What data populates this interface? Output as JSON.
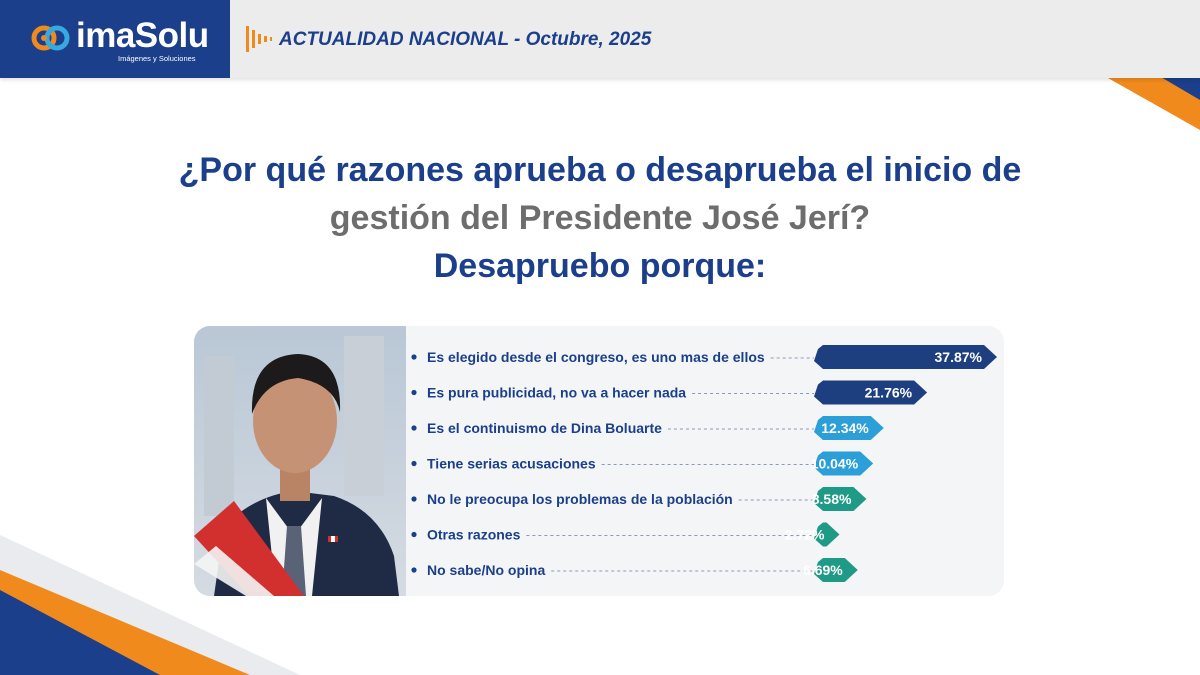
{
  "brand": {
    "name": "imaSolu",
    "tagline": "Imágenes y Soluciones",
    "colors": {
      "navy": "#1b3f8b",
      "orange": "#f08a1c",
      "grey_text": "#6d6d6d"
    }
  },
  "header": {
    "title": "ACTUALIDAD NACIONAL - Octubre, 2025",
    "icon": "equalizer-icon"
  },
  "question": {
    "line1": "¿Por qué razones aprueba o desaprueba el inicio de",
    "line2": "gestión del Presidente José Jerí?",
    "line3": "Desapruebo porque:"
  },
  "photo": {
    "subject": "portrait-photo"
  },
  "chart_data": {
    "type": "bar",
    "orientation": "horizontal",
    "categories": [
      "Es elegido desde el congreso, es uno mas de ellos",
      "Es pura publicidad, no va a hacer nada",
      "Es el continuismo de Dina Boluarte",
      "Tiene serias acusaciones",
      "No le preocupa los problemas de la población",
      "Otras razones",
      "No sabe/No opina"
    ],
    "values": [
      37.87,
      21.76,
      12.34,
      10.04,
      8.58,
      2.72,
      6.69
    ],
    "labels": [
      "37.87%",
      "21.76%",
      "12.34%",
      "10.04%",
      "8.58%",
      "2.72%",
      "6.69%"
    ],
    "bar_colors": [
      "#1e3f7f",
      "#1e3f7f",
      "#2c9fd9",
      "#2c9fd9",
      "#1f9a86",
      "#1f9a86",
      "#1f9a86"
    ]
  }
}
